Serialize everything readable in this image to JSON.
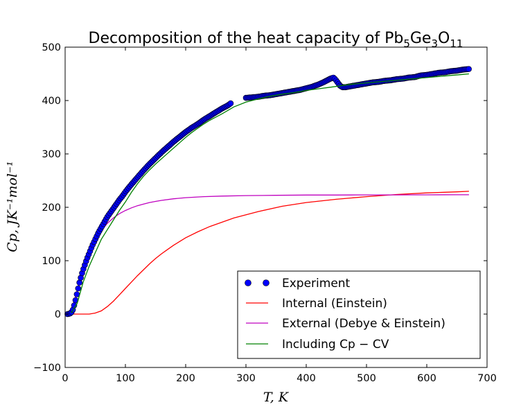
{
  "chart_data": {
    "type": "line",
    "title": "Decomposition of the heat capacity of Pb₅Ge₃O₁₁",
    "title_parts": {
      "main": "Decomposition of the heat capacity of Pb",
      "sub1": "5",
      "mid1": "Ge",
      "sub2": "3",
      "mid2": "O",
      "sub3": "11"
    },
    "xlabel": "T, K",
    "ylabel": "Cp, JK⁻¹mol⁻¹",
    "xlim": [
      0,
      700
    ],
    "ylim": [
      -100,
      500
    ],
    "x_ticks": [
      0,
      100,
      200,
      300,
      400,
      500,
      600,
      700
    ],
    "y_ticks": [
      -100,
      0,
      100,
      200,
      300,
      400,
      500
    ],
    "grid": false,
    "legend_position": "lower-right",
    "series": [
      {
        "name": "Experiment",
        "style": "markers",
        "color": "#0000ff",
        "segments": [
          {
            "x": [
              4,
              8,
              12,
              16,
              20,
              24,
              28,
              32,
              36,
              40,
              45,
              50,
              55,
              60,
              65,
              70,
              75,
              80,
              85,
              90,
              95,
              100,
              110,
              120,
              130,
              140,
              150,
              160,
              170,
              180,
              190,
              200,
              210,
              220,
              230,
              240,
              250,
              260,
              270,
              275
            ],
            "y": [
              0,
              1,
              5,
              20,
              40,
              60,
              76,
              90,
              103,
              114,
              128,
              140,
              152,
              162,
              172,
              182,
              190,
              198,
              206,
              214,
              221,
              229,
              243,
              256,
              269,
              281,
              292,
              303,
              313,
              323,
              332,
              341,
              349,
              356,
              364,
              371,
              378,
              385,
              391,
              395
            ]
          },
          {
            "x": [
              300,
              310,
              320,
              330,
              340,
              350,
              360,
              370,
              380,
              390,
              400,
              410,
              420,
              430,
              440,
              445,
              448,
              452,
              456,
              460,
              465,
              470,
              480,
              490,
              500,
              510,
              520,
              530,
              540,
              550,
              560,
              570,
              580,
              590,
              600,
              610,
              620,
              630,
              640,
              650,
              660,
              670
            ],
            "y": [
              405,
              406,
              407,
              409,
              410,
              412,
              414,
              416,
              418,
              420,
              423,
              426,
              430,
              435,
              441,
              443,
              440,
              434,
              428,
              425,
              425,
              426,
              428,
              430,
              432,
              434,
              435,
              437,
              438,
              440,
              441,
              443,
              444,
              447,
              448,
              450,
              452,
              453,
              455,
              456,
              458,
              459
            ]
          }
        ]
      },
      {
        "name": "Internal (Einstein)",
        "style": "line",
        "color": "#ff0000",
        "x": [
          10,
          20,
          30,
          40,
          50,
          60,
          70,
          80,
          90,
          100,
          110,
          120,
          130,
          140,
          150,
          160,
          170,
          180,
          190,
          200,
          220,
          240,
          280,
          320,
          360,
          400,
          450,
          500,
          550,
          600,
          650,
          670
        ],
        "y": [
          0,
          0,
          0,
          0,
          2,
          6,
          14,
          24,
          36,
          48,
          60,
          72,
          83,
          94,
          104,
          113,
          121,
          129,
          136,
          143,
          154,
          164,
          180,
          192,
          202,
          209,
          215,
          220,
          224,
          227,
          229,
          230
        ]
      },
      {
        "name": "External (Debye & Einstein)",
        "style": "line",
        "color": "#bf00bf",
        "x": [
          5,
          10,
          15,
          20,
          25,
          30,
          40,
          50,
          60,
          70,
          80,
          90,
          100,
          110,
          120,
          130,
          140,
          150,
          160,
          180,
          200,
          230,
          260,
          300,
          350,
          400,
          450,
          500,
          550,
          600,
          650,
          670
        ],
        "y": [
          1,
          8,
          24,
          44,
          64,
          82,
          112,
          137,
          156,
          170,
          180,
          188,
          194,
          199,
          203,
          206,
          209,
          211,
          213,
          216,
          218,
          220,
          221,
          222,
          222.5,
          223,
          223,
          223.2,
          223.3,
          223.4,
          223.5,
          223.5
        ]
      },
      {
        "name": "Including Cp − CV",
        "style": "line",
        "color": "#008000",
        "x": [
          10,
          20,
          30,
          40,
          50,
          60,
          70,
          80,
          90,
          100,
          110,
          120,
          130,
          140,
          150,
          160,
          170,
          180,
          190,
          200,
          210,
          220,
          230,
          240,
          250,
          260,
          280,
          300,
          320,
          340,
          360,
          380,
          400,
          420,
          440,
          460,
          480,
          500,
          520,
          540,
          560,
          580,
          600,
          620,
          640,
          660,
          670
        ],
        "y": [
          2,
          20,
          60,
          90,
          115,
          140,
          158,
          176,
          194,
          210,
          228,
          244,
          258,
          270,
          281,
          291,
          301,
          311,
          321,
          331,
          340,
          348,
          356,
          363,
          369,
          375,
          388,
          397,
          403,
          408,
          412,
          415,
          419,
          422,
          425,
          428,
          431,
          433,
          435,
          437,
          439,
          441,
          443,
          445,
          447,
          449,
          450
        ]
      }
    ]
  }
}
